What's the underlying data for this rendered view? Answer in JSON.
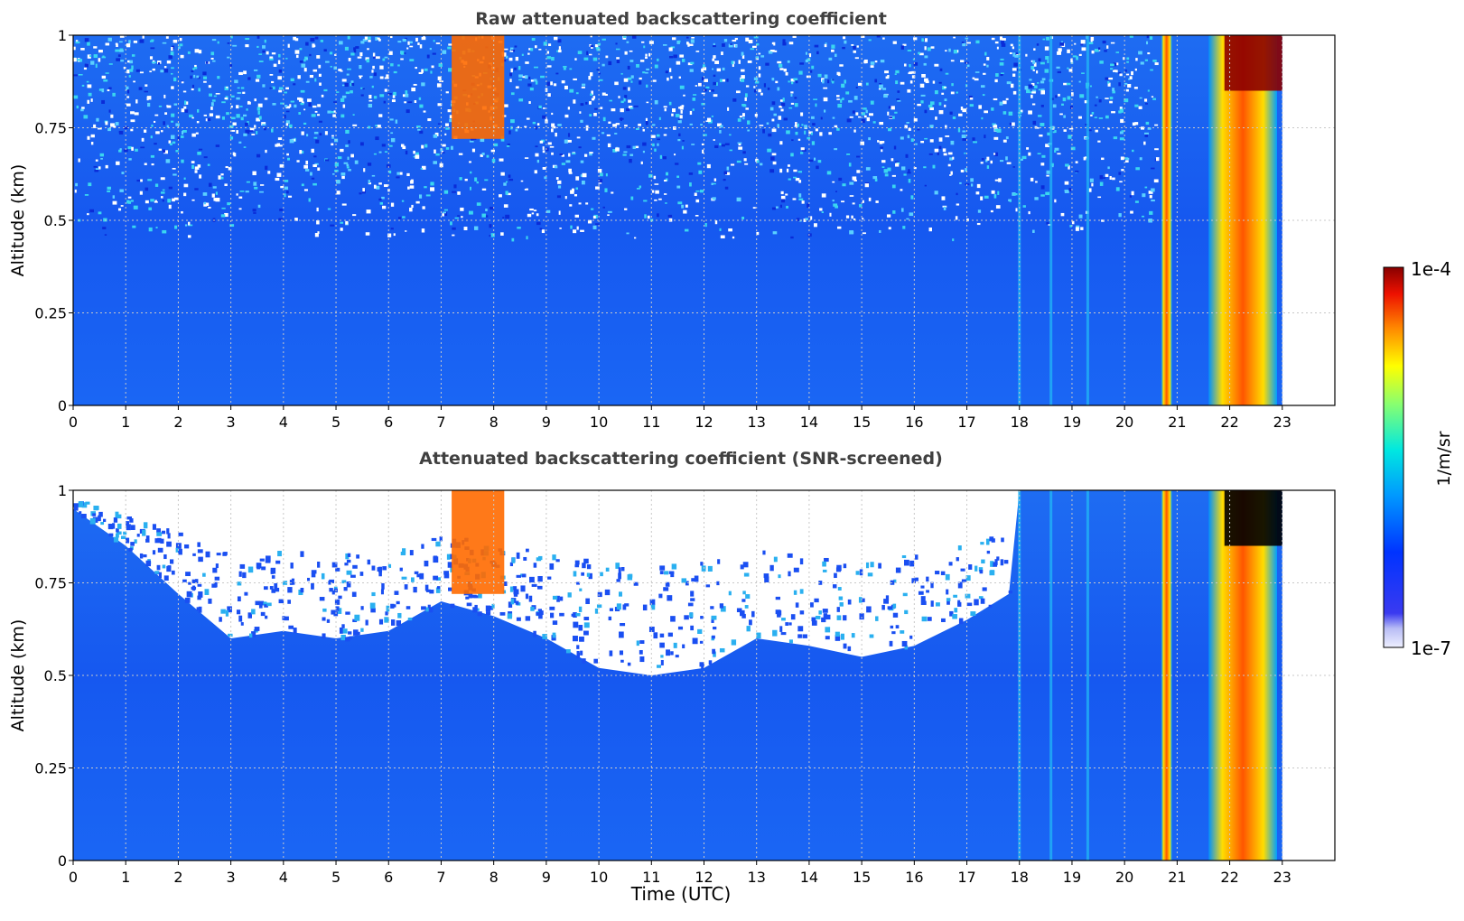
{
  "chart_data": [
    {
      "type": "heatmap",
      "title": "Raw attenuated backscattering coefficient",
      "xlabel": "",
      "ylabel": "Altitude (km)",
      "xlim": [
        0,
        24
      ],
      "ylim": [
        0,
        1
      ],
      "xticks": [
        "0",
        "1",
        "2",
        "3",
        "4",
        "5",
        "6",
        "7",
        "8",
        "9",
        "10",
        "11",
        "12",
        "13",
        "14",
        "15",
        "16",
        "17",
        "18",
        "19",
        "20",
        "21",
        "22",
        "23"
      ],
      "yticks": [
        "0",
        "0.25",
        "0.5",
        "0.75",
        "1"
      ],
      "grid": true,
      "data_end_time": 23,
      "features": [
        {
          "kind": "cloud",
          "x_range": [
            7.2,
            8.2
          ],
          "y_range": [
            0.72,
            1.0
          ],
          "level": "high"
        },
        {
          "kind": "streak",
          "x": 18.0,
          "level": "medium"
        },
        {
          "kind": "streak",
          "x": 18.6,
          "level": "medium"
        },
        {
          "kind": "streak",
          "x": 19.3,
          "level": "medium"
        },
        {
          "kind": "precipitation",
          "x_range": [
            20.7,
            20.9
          ],
          "y_range": [
            0,
            1.0
          ],
          "level": "high"
        },
        {
          "kind": "precipitation",
          "x_range": [
            21.6,
            22.9
          ],
          "y_range": [
            0,
            1.0
          ],
          "level": "high"
        },
        {
          "kind": "cloud",
          "x_range": [
            21.9,
            23.0
          ],
          "y_range": [
            0.85,
            1.0
          ],
          "level": "saturated"
        }
      ]
    },
    {
      "type": "heatmap",
      "title": "Attenuated backscattering coefficient (SNR-screened)",
      "xlabel": "Time (UTC)",
      "ylabel": "Altitude (km)",
      "xlim": [
        0,
        24
      ],
      "ylim": [
        0,
        1
      ],
      "xticks": [
        "0",
        "1",
        "2",
        "3",
        "4",
        "5",
        "6",
        "7",
        "8",
        "9",
        "10",
        "11",
        "12",
        "13",
        "14",
        "15",
        "16",
        "17",
        "18",
        "19",
        "20",
        "21",
        "22",
        "23"
      ],
      "yticks": [
        "0",
        "0.25",
        "0.5",
        "0.75",
        "1"
      ],
      "grid": true,
      "data_end_time": 23,
      "screened_top_profile": [
        [
          0,
          0.95
        ],
        [
          1,
          0.85
        ],
        [
          2,
          0.72
        ],
        [
          3,
          0.6
        ],
        [
          4,
          0.62
        ],
        [
          5,
          0.6
        ],
        [
          6,
          0.62
        ],
        [
          7,
          0.7
        ],
        [
          8,
          0.66
        ],
        [
          9,
          0.6
        ],
        [
          10,
          0.52
        ],
        [
          11,
          0.5
        ],
        [
          12,
          0.52
        ],
        [
          13,
          0.6
        ],
        [
          14,
          0.58
        ],
        [
          15,
          0.55
        ],
        [
          16,
          0.58
        ],
        [
          17,
          0.65
        ],
        [
          17.8,
          0.72
        ],
        [
          18,
          1.0
        ],
        [
          23,
          1.0
        ]
      ]
    }
  ],
  "colorbar": {
    "label": "1/m/sr",
    "max_label": "1e-4",
    "min_label": "1e-7",
    "scale": "log",
    "colormap": "jet"
  }
}
